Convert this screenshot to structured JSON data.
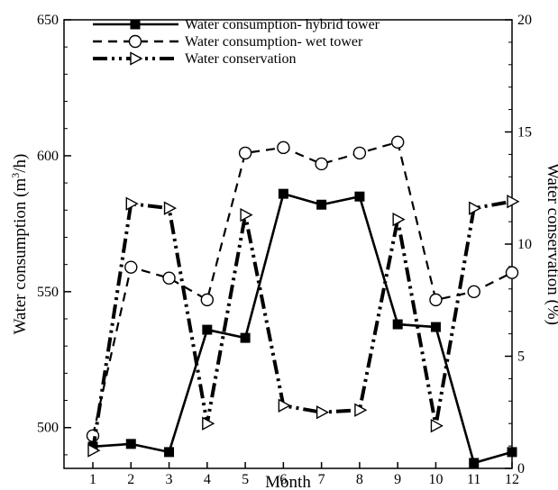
{
  "chart_data": {
    "type": "line",
    "title": "",
    "xlabel": "Month",
    "ylabel": "Water consumption (m3/h)",
    "ylabel_parts": {
      "pre": "Water consumption (m",
      "sup": "3",
      "post": "/h)"
    },
    "y2label": "Water conservation (%)",
    "x": [
      1,
      2,
      3,
      4,
      5,
      6,
      7,
      8,
      9,
      10,
      11,
      12
    ],
    "x_ticks": [
      "1",
      "2",
      "3",
      "4",
      "5",
      "6",
      "7",
      "8",
      "9",
      "10",
      "11",
      "12"
    ],
    "xlim": [
      1,
      12
    ],
    "ylim": [
      485,
      650
    ],
    "y_ticks": [
      "500",
      "550",
      "600",
      "650"
    ],
    "y2lim": [
      0,
      20
    ],
    "y2_ticks": [
      "0",
      "5",
      "10",
      "15",
      "20"
    ],
    "grid": false,
    "legend_position": "top-left",
    "series": [
      {
        "name": "Water consumption- hybrid tower",
        "axis": "left",
        "marker": "filled-square",
        "line_style": "solid",
        "values": [
          493,
          494,
          491,
          536,
          533,
          586,
          582,
          585,
          538,
          537,
          487,
          491
        ]
      },
      {
        "name": "Water consumption- wet tower",
        "axis": "left",
        "marker": "open-circle",
        "line_style": "dashed",
        "values": [
          497,
          559,
          555,
          547,
          601,
          603,
          597,
          601,
          605,
          547,
          550,
          557
        ]
      },
      {
        "name": "Water conservation",
        "axis": "right",
        "marker": "open-triangle-right",
        "line_style": "dash-dot-dot",
        "values": [
          0.8,
          11.8,
          11.6,
          2.0,
          11.3,
          2.8,
          2.5,
          2.6,
          11.1,
          1.9,
          11.6,
          11.9
        ]
      }
    ]
  }
}
